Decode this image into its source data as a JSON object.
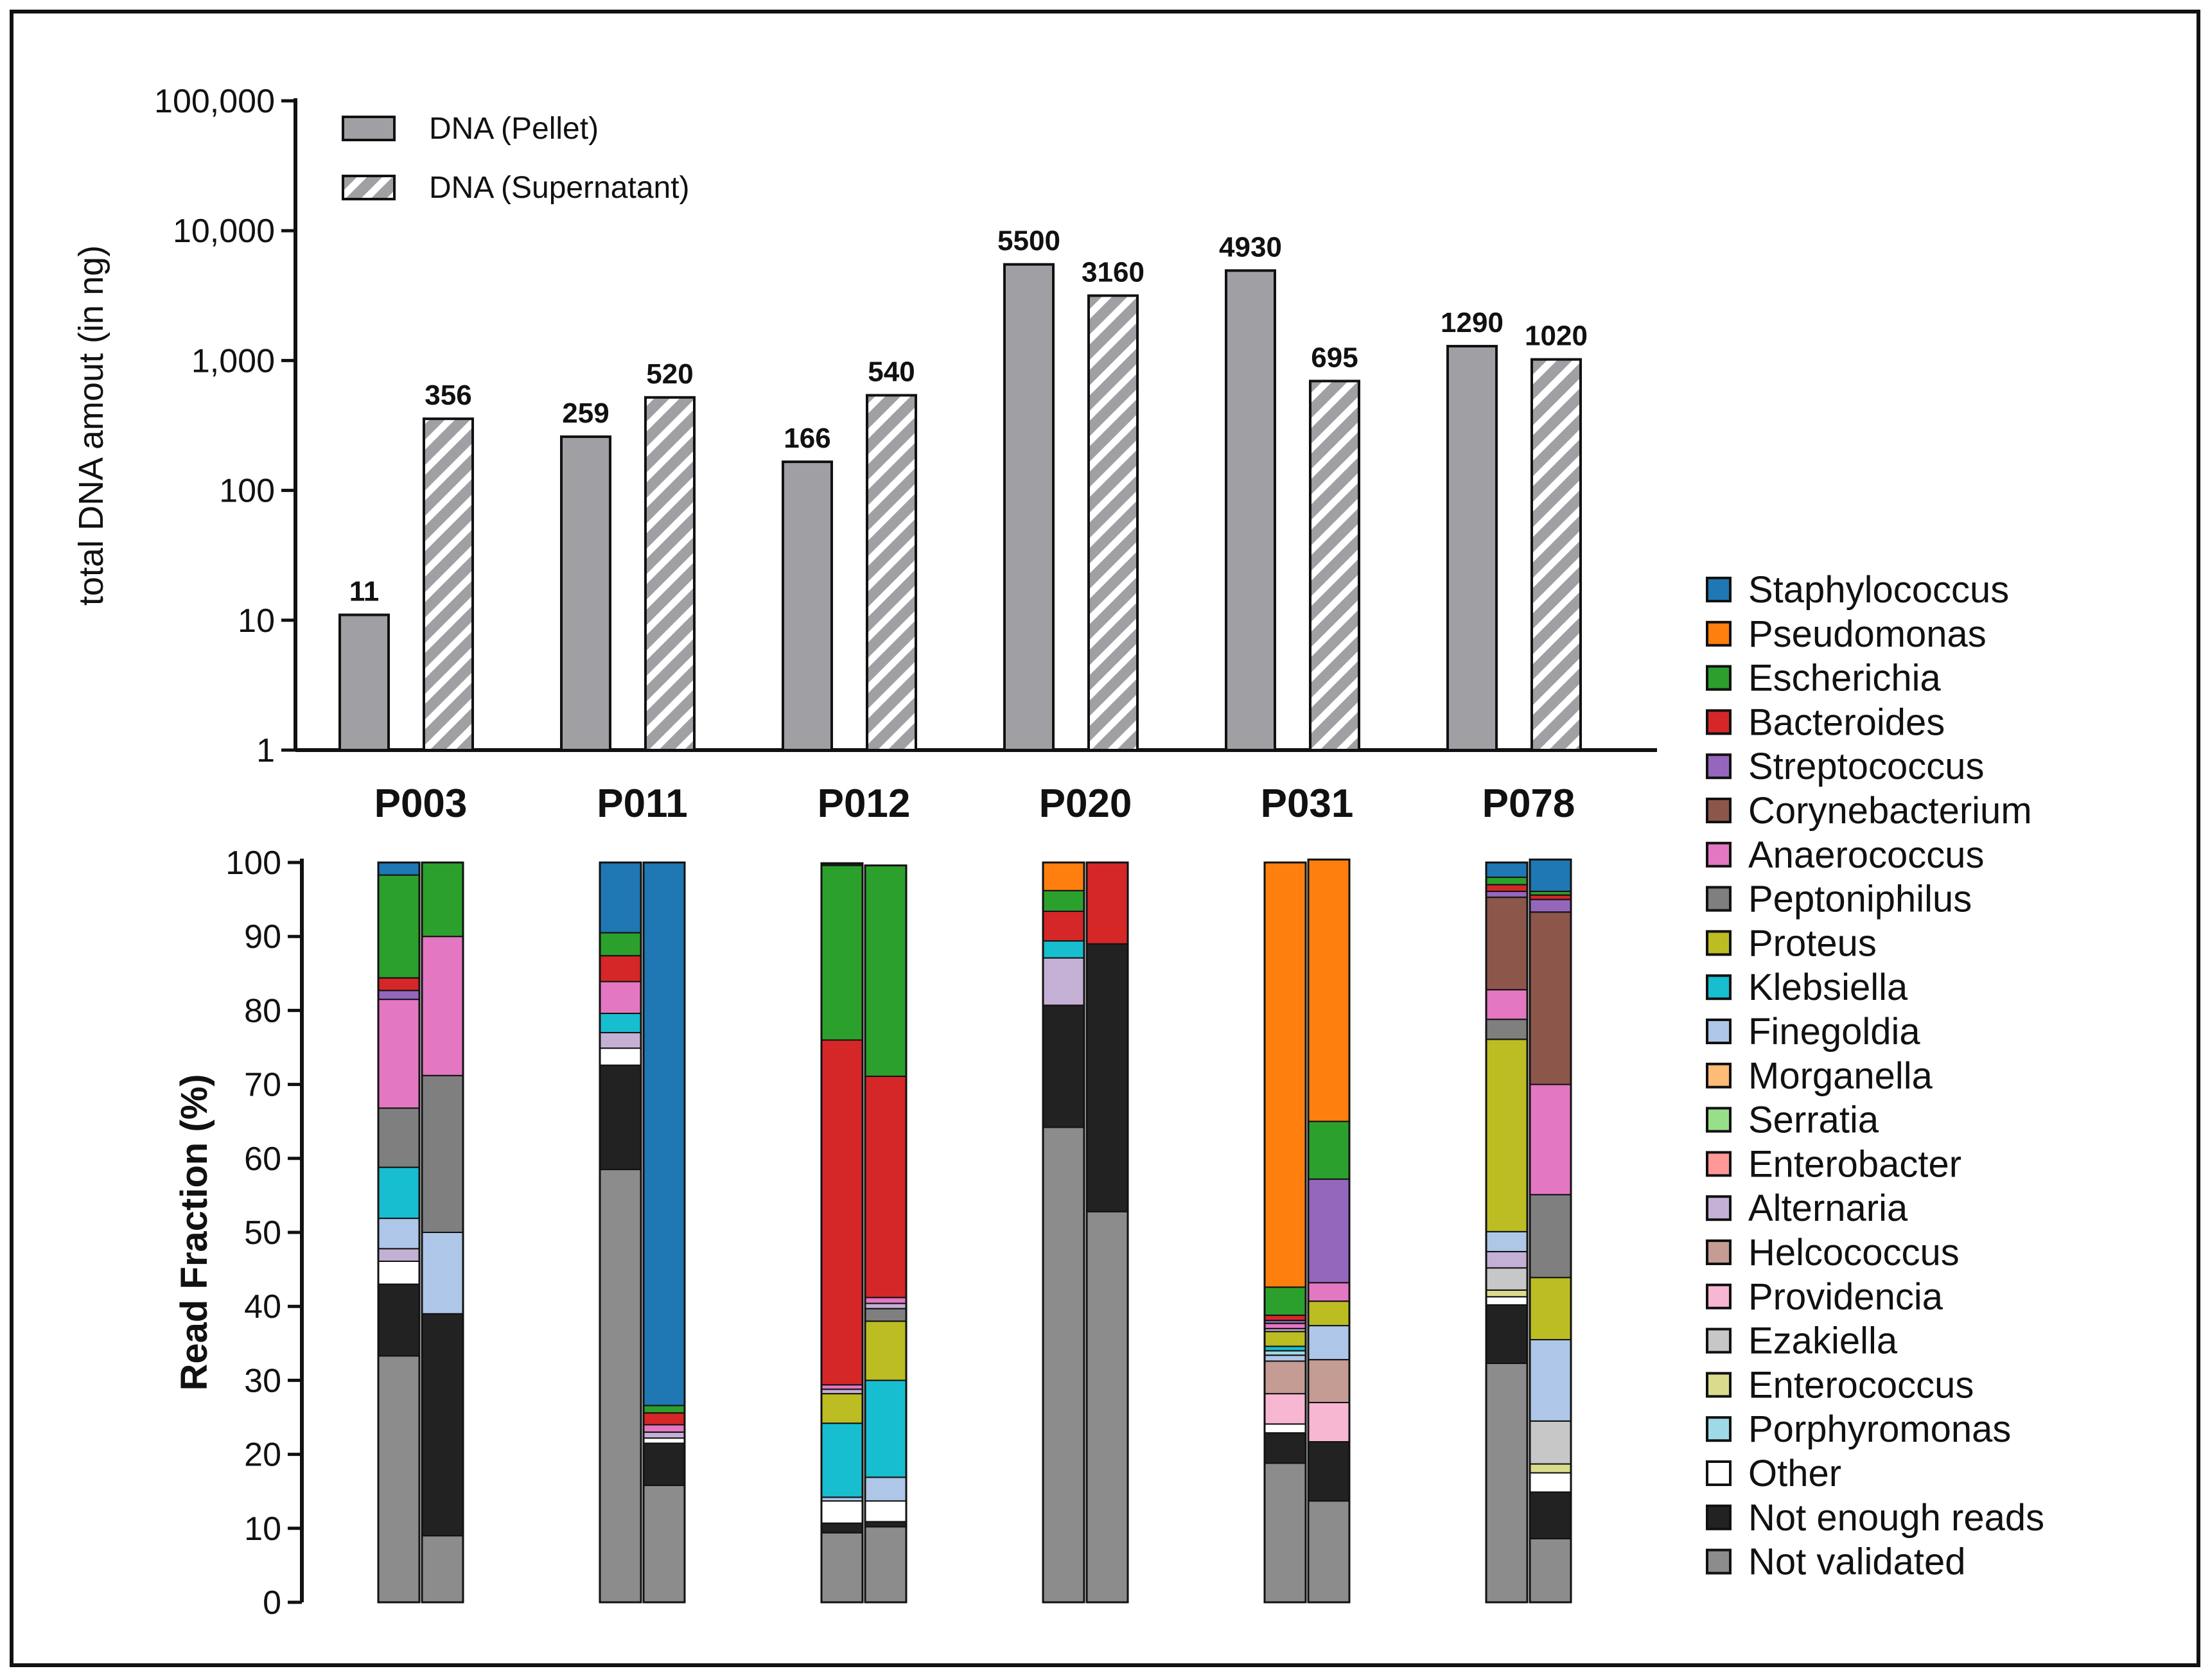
{
  "chart_data": [
    {
      "type": "bar",
      "scale": "log",
      "ylabel": "total DNA amout (in ng)",
      "ylim": [
        1,
        100000
      ],
      "yticks": [
        "1",
        "10",
        "100",
        "1,000",
        "10,000",
        "100,000"
      ],
      "ytick_values": [
        1,
        10,
        100,
        1000,
        10000,
        100000
      ],
      "categories": [
        "P003",
        "P011",
        "P012",
        "P020",
        "P031",
        "P078"
      ],
      "series": [
        {
          "name": "DNA (Pellet)",
          "pattern": "solid",
          "color": "#a0a0a4",
          "values": [
            11,
            259,
            166,
            5500,
            4930,
            1290
          ],
          "labels": [
            "11",
            "259",
            "166",
            "5500",
            "4930",
            "1290"
          ]
        },
        {
          "name": "DNA (Supernatant)",
          "pattern": "hatched",
          "color": "#a0a0a4",
          "values": [
            356,
            520,
            540,
            3160,
            695,
            1020
          ],
          "labels": [
            "356",
            "520",
            "540",
            "3160",
            "695",
            "1020"
          ]
        }
      ],
      "legend": {
        "position": "top-left",
        "entries": [
          "DNA (Pellet)",
          "DNA (Supernatant)"
        ]
      }
    },
    {
      "type": "stacked-bar",
      "ylabel": "Read Fraction (%)",
      "ylim": [
        0,
        100
      ],
      "yticks": [
        "0",
        "10",
        "20",
        "30",
        "40",
        "50",
        "60",
        "70",
        "80",
        "90",
        "100"
      ],
      "ytick_values": [
        0,
        10,
        20,
        30,
        40,
        50,
        60,
        70,
        80,
        90,
        100
      ],
      "categories": [
        "P003",
        "P011",
        "P012",
        "P020",
        "P031",
        "P078"
      ],
      "sub_bars": [
        "Pellet",
        "Supernatant"
      ],
      "legend": {
        "position": "right",
        "entries": [
          {
            "name": "Staphylococcus",
            "color": "#1f77b4"
          },
          {
            "name": "Pseudomonas",
            "color": "#ff7f0e"
          },
          {
            "name": "Escherichia",
            "color": "#2ca02c"
          },
          {
            "name": "Bacteroides",
            "color": "#d62728"
          },
          {
            "name": "Streptococcus",
            "color": "#9467bd"
          },
          {
            "name": "Corynebacterium",
            "color": "#8c564b"
          },
          {
            "name": "Anaerococcus",
            "color": "#e377c2"
          },
          {
            "name": "Peptoniphilus",
            "color": "#7f7f7f"
          },
          {
            "name": "Proteus",
            "color": "#bcbd22"
          },
          {
            "name": "Klebsiella",
            "color": "#17becf"
          },
          {
            "name": "Finegoldia",
            "color": "#aec7e8"
          },
          {
            "name": "Morganella",
            "color": "#ffbb78"
          },
          {
            "name": "Serratia",
            "color": "#98df8a"
          },
          {
            "name": "Enterobacter",
            "color": "#ff9896"
          },
          {
            "name": "Alternaria",
            "color": "#c5b0d5"
          },
          {
            "name": "Helcococcus",
            "color": "#c49c94"
          },
          {
            "name": "Providencia",
            "color": "#f7b6d2"
          },
          {
            "name": "Ezakiella",
            "color": "#c7c7c7"
          },
          {
            "name": "Enterococcus",
            "color": "#dbdb8d"
          },
          {
            "name": "Porphyromonas",
            "color": "#9edae5"
          },
          {
            "name": "Other",
            "color": "#ffffff"
          },
          {
            "name": "Not enough reads",
            "color": "#222222"
          },
          {
            "name": "Not validated",
            "color": "#8c8c8c"
          }
        ]
      },
      "bars": [
        {
          "sample": "P003",
          "fraction": "Pellet",
          "segments": [
            [
              "Not validated",
              33.3
            ],
            [
              "Not enough reads",
              9.7
            ],
            [
              "Other",
              3.1
            ],
            [
              "Alternaria",
              1.7
            ],
            [
              "Finegoldia",
              4.1
            ],
            [
              "Klebsiella",
              6.9
            ],
            [
              "Peptoniphilus",
              8.0
            ],
            [
              "Anaerococcus",
              14.7
            ],
            [
              "Streptococcus",
              1.2
            ],
            [
              "Bacteroides",
              1.7
            ],
            [
              "Escherichia",
              13.9
            ],
            [
              "Staphylococcus",
              1.7
            ]
          ]
        },
        {
          "sample": "P003",
          "fraction": "Supernatant",
          "segments": [
            [
              "Not validated",
              9.0
            ],
            [
              "Not enough reads",
              30.0
            ],
            [
              "Finegoldia",
              11.0
            ],
            [
              "Peptoniphilus",
              21.2
            ],
            [
              "Anaerococcus",
              18.8
            ],
            [
              "Escherichia",
              10.0
            ]
          ]
        },
        {
          "sample": "P011",
          "fraction": "Pellet",
          "segments": [
            [
              "Not validated",
              58.5
            ],
            [
              "Not enough reads",
              14.1
            ],
            [
              "Other",
              2.3
            ],
            [
              "Alternaria",
              2.1
            ],
            [
              "Klebsiella",
              2.6
            ],
            [
              "Anaerococcus",
              4.3
            ],
            [
              "Bacteroides",
              3.5
            ],
            [
              "Escherichia",
              3.1
            ],
            [
              "Staphylococcus",
              9.5
            ]
          ]
        },
        {
          "sample": "P011",
          "fraction": "Supernatant",
          "segments": [
            [
              "Not validated",
              15.8
            ],
            [
              "Not enough reads",
              5.7
            ],
            [
              "Other",
              0.7
            ],
            [
              "Alternaria",
              0.8
            ],
            [
              "Anaerococcus",
              1.0
            ],
            [
              "Bacteroides",
              1.6
            ],
            [
              "Escherichia",
              1.0
            ],
            [
              "Staphylococcus",
              73.4
            ]
          ]
        },
        {
          "sample": "P012",
          "fraction": "Pellet",
          "segments": [
            [
              "Not validated",
              9.4
            ],
            [
              "Not enough reads",
              1.3
            ],
            [
              "Other",
              3.0
            ],
            [
              "Finegoldia",
              0.5
            ],
            [
              "Klebsiella",
              10.0
            ],
            [
              "Proteus",
              4.0
            ],
            [
              "Alternaria",
              0.6
            ],
            [
              "Anaerococcus",
              0.6
            ],
            [
              "Bacteroides",
              46.6
            ],
            [
              "Escherichia",
              23.6
            ],
            [
              "Not enough reads",
              0.3
            ]
          ]
        },
        {
          "sample": "P012",
          "fraction": "Supernatant",
          "segments": [
            [
              "Not validated",
              10.2
            ],
            [
              "Not enough reads",
              0.7
            ],
            [
              "Other",
              2.8
            ],
            [
              "Finegoldia",
              3.2
            ],
            [
              "Klebsiella",
              13.1
            ],
            [
              "Proteus",
              8.0
            ],
            [
              "Peptoniphilus",
              1.7
            ],
            [
              "Alternaria",
              0.7
            ],
            [
              "Anaerococcus",
              0.8
            ],
            [
              "Bacteroides",
              29.9
            ],
            [
              "Escherichia",
              28.5
            ]
          ]
        },
        {
          "sample": "P020",
          "fraction": "Pellet",
          "segments": [
            [
              "Not validated",
              64.2
            ],
            [
              "Not enough reads",
              16.5
            ],
            [
              "Alternaria",
              6.4
            ],
            [
              "Klebsiella",
              2.3
            ],
            [
              "Bacteroides",
              4.0
            ],
            [
              "Escherichia",
              2.8
            ],
            [
              "Pseudomonas",
              3.8
            ]
          ]
        },
        {
          "sample": "P020",
          "fraction": "Supernatant",
          "segments": [
            [
              "Not validated",
              52.8
            ],
            [
              "Not enough reads",
              36.2
            ],
            [
              "Bacteroides",
              11.0
            ]
          ]
        },
        {
          "sample": "P031",
          "fraction": "Pellet",
          "segments": [
            [
              "Not validated",
              18.8
            ],
            [
              "Not enough reads",
              4.1
            ],
            [
              "Other",
              1.2
            ],
            [
              "Providencia",
              4.1
            ],
            [
              "Helcococcus",
              4.4
            ],
            [
              "Finegoldia",
              0.8
            ],
            [
              "Porphyromonas",
              0.6
            ],
            [
              "Klebsiella",
              0.6
            ],
            [
              "Proteus",
              2.0
            ],
            [
              "Alternaria",
              0.4
            ],
            [
              "Anaerococcus",
              0.7
            ],
            [
              "Streptococcus",
              0.4
            ],
            [
              "Bacteroides",
              0.7
            ],
            [
              "Escherichia",
              3.8
            ],
            [
              "Pseudomonas",
              57.4
            ]
          ]
        },
        {
          "sample": "P031",
          "fraction": "Supernatant",
          "segments": [
            [
              "Not validated",
              13.7
            ],
            [
              "Not enough reads",
              8.0
            ],
            [
              "Providencia",
              5.3
            ],
            [
              "Helcococcus",
              5.8
            ],
            [
              "Finegoldia",
              4.6
            ],
            [
              "Proteus",
              3.3
            ],
            [
              "Anaerococcus",
              2.5
            ],
            [
              "Streptococcus",
              14.0
            ],
            [
              "Escherichia",
              7.8
            ],
            [
              "Pseudomonas",
              35.4
            ]
          ]
        },
        {
          "sample": "P078",
          "fraction": "Pellet",
          "segments": [
            [
              "Not validated",
              32.3
            ],
            [
              "Not enough reads",
              7.9
            ],
            [
              "Other",
              1.1
            ],
            [
              "Enterococcus",
              0.9
            ],
            [
              "Ezakiella",
              3.0
            ],
            [
              "Alternaria",
              2.2
            ],
            [
              "Finegoldia",
              2.7
            ],
            [
              "Proteus",
              26.0
            ],
            [
              "Peptoniphilus",
              2.7
            ],
            [
              "Anaerococcus",
              4.0
            ],
            [
              "Corynebacterium",
              12.5
            ],
            [
              "Streptococcus",
              0.8
            ],
            [
              "Bacteroides",
              0.9
            ],
            [
              "Escherichia",
              1.0
            ],
            [
              "Staphylococcus",
              2.0
            ]
          ]
        },
        {
          "sample": "P078",
          "fraction": "Supernatant",
          "segments": [
            [
              "Not validated",
              8.6
            ],
            [
              "Not enough reads",
              6.3
            ],
            [
              "Other",
              2.6
            ],
            [
              "Enterococcus",
              1.2
            ],
            [
              "Ezakiella",
              5.8
            ],
            [
              "Finegoldia",
              11.0
            ],
            [
              "Proteus",
              8.4
            ],
            [
              "Peptoniphilus",
              11.2
            ],
            [
              "Anaerococcus",
              14.9
            ],
            [
              "Corynebacterium",
              23.3
            ],
            [
              "Streptococcus",
              1.7
            ],
            [
              "Bacteroides",
              0.6
            ],
            [
              "Escherichia",
              0.5
            ],
            [
              "Staphylococcus",
              4.3
            ]
          ]
        }
      ]
    }
  ]
}
